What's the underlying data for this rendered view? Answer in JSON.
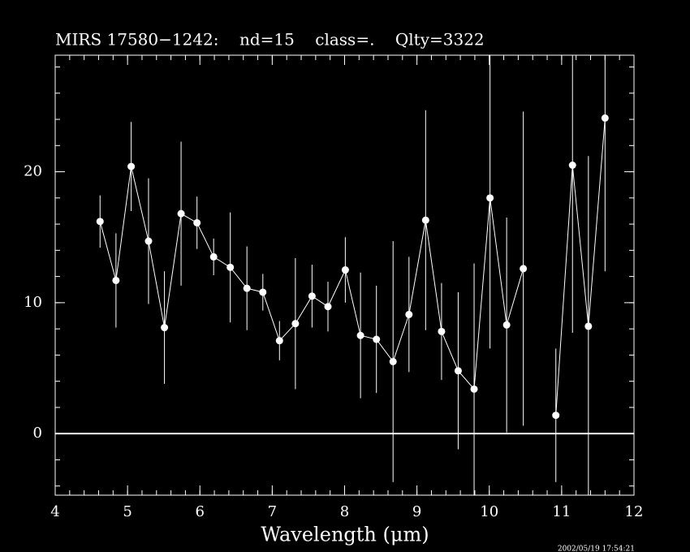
{
  "chart_data": {
    "type": "errorbar-line",
    "title": "MIRS 17580−1242:    nd=15    class=.    Qlty=3322",
    "x_label": "Wavelength (μm)",
    "timestamp": "2002/05/19 17:54:21",
    "x": [
      4.62,
      4.84,
      5.05,
      5.29,
      5.51,
      5.74,
      5.96,
      6.19,
      6.42,
      6.65,
      6.87,
      7.1,
      7.32,
      7.55,
      7.77,
      8.01,
      8.22,
      8.44,
      8.67,
      8.89,
      9.12,
      9.34,
      9.57,
      9.79,
      10.01,
      10.24,
      10.47,
      null,
      10.92,
      11.15,
      11.37,
      11.6
    ],
    "values": [
      16.2,
      11.7,
      20.4,
      14.7,
      8.1,
      16.8,
      16.1,
      13.5,
      12.7,
      11.1,
      10.8,
      7.1,
      8.4,
      10.5,
      9.7,
      12.5,
      7.5,
      7.2,
      5.5,
      9.1,
      16.3,
      7.8,
      4.8,
      3.4,
      18.0,
      8.3,
      12.6,
      null,
      1.4,
      20.5,
      8.2,
      24.1
    ],
    "errors": [
      2.0,
      3.6,
      3.4,
      4.8,
      4.3,
      5.5,
      2.0,
      1.4,
      4.2,
      3.2,
      1.4,
      1.5,
      5.0,
      2.4,
      1.9,
      2.5,
      4.8,
      4.1,
      9.2,
      4.4,
      8.4,
      3.7,
      6.0,
      9.6,
      11.5,
      8.2,
      12.0,
      null,
      5.1,
      12.8,
      13.0,
      11.7
    ],
    "color": "#ffffff",
    "xlim": [
      4,
      12
    ],
    "ylim": [
      -4.7,
      28.9
    ],
    "xticks": [
      4,
      5,
      6,
      7,
      8,
      9,
      10,
      11,
      12
    ],
    "yticks": [
      0,
      10,
      20
    ],
    "minor_ticks": {
      "x": 0.2,
      "y": 2
    },
    "zero_line": true
  }
}
